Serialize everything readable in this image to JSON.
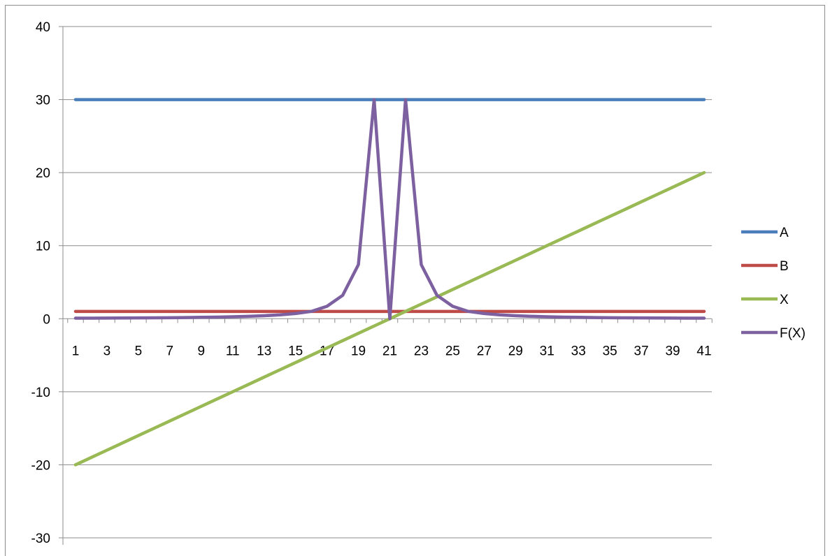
{
  "chart_data": {
    "type": "line",
    "title": "",
    "xlabel": "",
    "ylabel": "",
    "x": [
      1,
      2,
      3,
      4,
      5,
      6,
      7,
      8,
      9,
      10,
      11,
      12,
      13,
      14,
      15,
      16,
      17,
      18,
      19,
      20,
      21,
      22,
      23,
      24,
      25,
      26,
      27,
      28,
      29,
      30,
      31,
      32,
      33,
      34,
      35,
      36,
      37,
      38,
      39,
      40,
      41
    ],
    "x_tick_labels": [
      "1",
      "3",
      "5",
      "7",
      "9",
      "11",
      "13",
      "15",
      "17",
      "19",
      "21",
      "23",
      "25",
      "27",
      "29",
      "31",
      "33",
      "35",
      "37",
      "39",
      "41"
    ],
    "y_tick_labels": [
      "40",
      "30",
      "20",
      "10",
      "0",
      "-10",
      "-20",
      "-30"
    ],
    "ylim": [
      -30,
      40
    ],
    "y_major_unit": 10,
    "grid": true,
    "legend_position": "right",
    "series": [
      {
        "name": "A",
        "color": "#4a7ebb",
        "values": [
          30,
          30,
          30,
          30,
          30,
          30,
          30,
          30,
          30,
          30,
          30,
          30,
          30,
          30,
          30,
          30,
          30,
          30,
          30,
          30,
          30,
          30,
          30,
          30,
          30,
          30,
          30,
          30,
          30,
          30,
          30,
          30,
          30,
          30,
          30,
          30,
          30,
          30,
          30,
          30,
          30
        ]
      },
      {
        "name": "B",
        "color": "#be4b48",
        "values": [
          1,
          1,
          1,
          1,
          1,
          1,
          1,
          1,
          1,
          1,
          1,
          1,
          1,
          1,
          1,
          1,
          1,
          1,
          1,
          1,
          1,
          1,
          1,
          1,
          1,
          1,
          1,
          1,
          1,
          1,
          1,
          1,
          1,
          1,
          1,
          1,
          1,
          1,
          1,
          1,
          1
        ]
      },
      {
        "name": "X",
        "color": "#98b954",
        "values": [
          -20,
          -19,
          -18,
          -17,
          -16,
          -15,
          -14,
          -13,
          -12,
          -11,
          -10,
          -9,
          -8,
          -7,
          -6,
          -5,
          -4,
          -3,
          -2,
          -1,
          0,
          1,
          2,
          3,
          4,
          5,
          6,
          7,
          8,
          9,
          10,
          11,
          12,
          13,
          14,
          15,
          16,
          17,
          18,
          19,
          20
        ]
      },
      {
        "name": "F(X)",
        "color": "#7d60a0",
        "values": [
          0.07,
          0.08,
          0.09,
          0.1,
          0.11,
          0.12,
          0.14,
          0.16,
          0.19,
          0.22,
          0.27,
          0.33,
          0.41,
          0.53,
          0.71,
          1.0,
          1.7,
          3.2,
          7.4,
          30,
          0,
          30,
          7.4,
          3.2,
          1.7,
          1.0,
          0.71,
          0.53,
          0.41,
          0.33,
          0.27,
          0.22,
          0.19,
          0.16,
          0.14,
          0.12,
          0.11,
          0.1,
          0.09,
          0.08,
          0.07
        ]
      }
    ]
  }
}
